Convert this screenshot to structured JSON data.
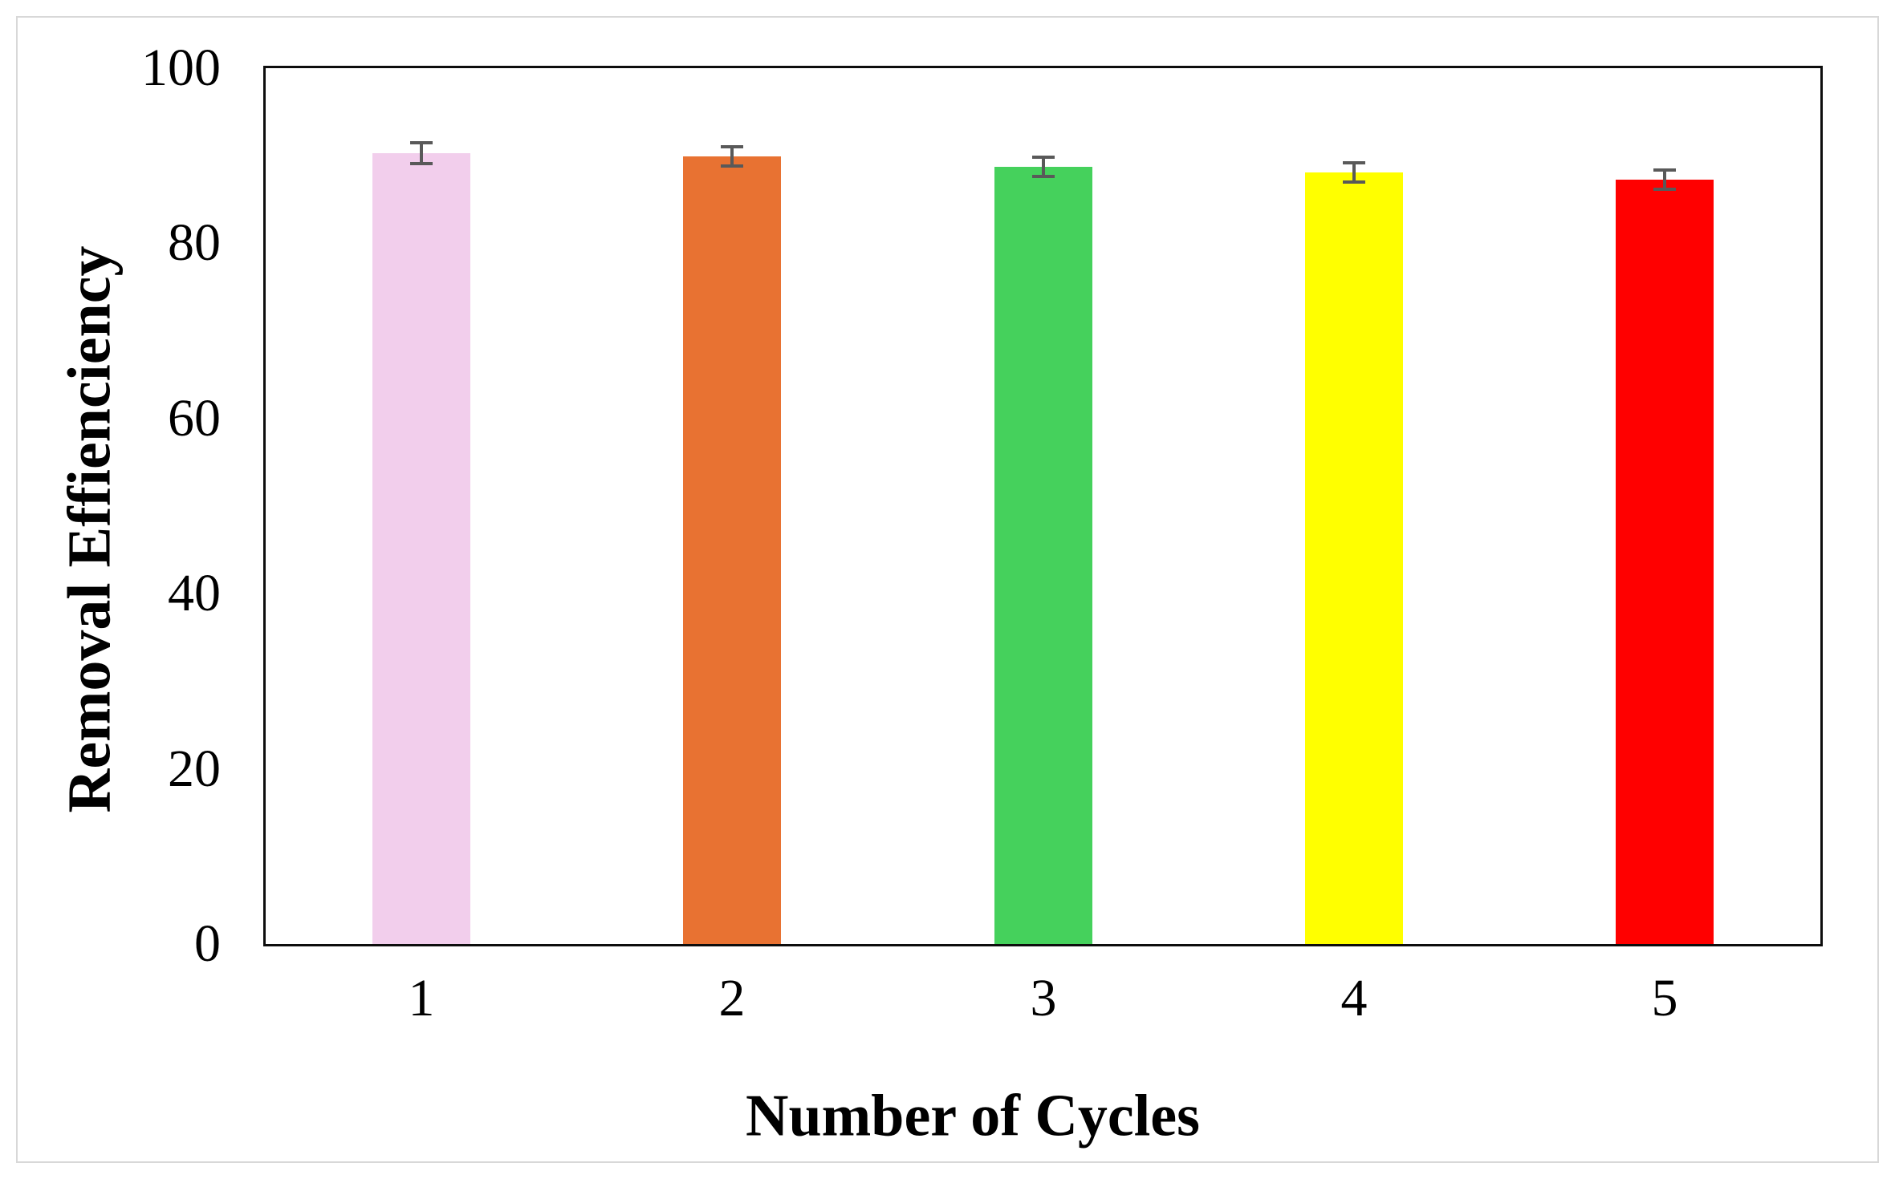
{
  "figure": {
    "description": "Bar chart of removal efficiency over reuse cycles with error bars"
  },
  "chart_data": {
    "type": "bar",
    "title": "",
    "xlabel": "Number of Cycles",
    "ylabel": "Removal Effienciency",
    "categories": [
      "1",
      "2",
      "3",
      "4",
      "5"
    ],
    "values": [
      90.3,
      89.9,
      88.7,
      88.1,
      87.3
    ],
    "errors": [
      1.2,
      1.1,
      1.1,
      1.1,
      1.1
    ],
    "bar_colors": [
      "#F2CEEC",
      "#E87232",
      "#45D15C",
      "#FFFF00",
      "#FF0000"
    ],
    "error_bar_color": "#595959",
    "y_ticks": [
      0,
      20,
      40,
      60,
      80,
      100
    ],
    "ylim": [
      0,
      100
    ],
    "grid": false,
    "legend": false,
    "frame": true,
    "frame_color": "#0d0d0d"
  }
}
